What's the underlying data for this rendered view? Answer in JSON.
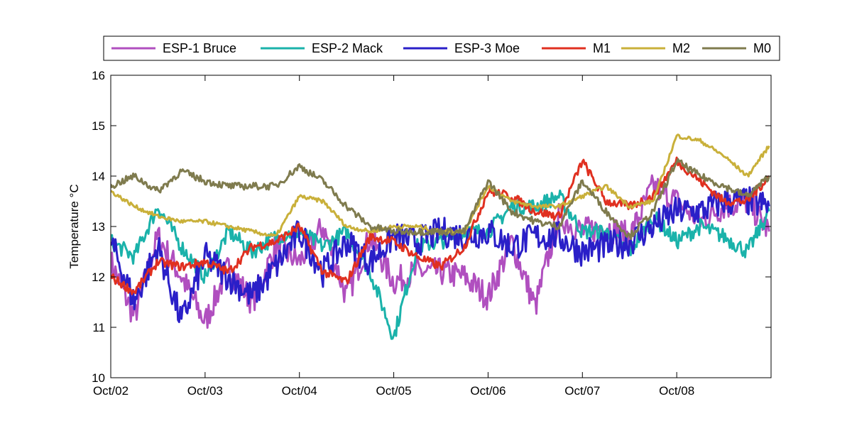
{
  "chart_data": {
    "type": "line",
    "title": "",
    "xlabel": "",
    "ylabel": "Temperature °C",
    "xlim": [
      "Oct/02",
      "Oct/09"
    ],
    "ylim": [
      10,
      16
    ],
    "x_ticks": [
      "Oct/02",
      "Oct/03",
      "Oct/04",
      "Oct/05",
      "Oct/06",
      "Oct/07",
      "Oct/08"
    ],
    "y_ticks": [
      "10",
      "11",
      "12",
      "13",
      "14",
      "15",
      "16"
    ],
    "grid": false,
    "legend_position": "top",
    "x": [
      2.0,
      2.25,
      2.5,
      2.75,
      3.0,
      3.25,
      3.5,
      3.75,
      4.0,
      4.25,
      4.5,
      4.75,
      5.0,
      5.25,
      5.5,
      5.75,
      6.0,
      6.25,
      6.5,
      6.75,
      7.0,
      7.25,
      7.5,
      7.75,
      8.0,
      8.25,
      8.5,
      8.75,
      8.98
    ],
    "series": [
      {
        "name": "ESP-1 Bruce",
        "color": "#b04fbf",
        "values": [
          12.3,
          11.2,
          12.8,
          12.0,
          11.1,
          12.2,
          11.5,
          12.6,
          12.3,
          13.0,
          11.6,
          12.8,
          11.9,
          12.1,
          12.1,
          12.0,
          11.6,
          12.7,
          11.4,
          13.2,
          12.9,
          13.0,
          12.8,
          13.8,
          13.5,
          13.1,
          13.4,
          13.5,
          12.9
        ]
      },
      {
        "name": "ESP-2 Mack",
        "color": "#1ab2aa",
        "values": [
          12.7,
          12.4,
          13.4,
          12.6,
          12.0,
          12.9,
          12.5,
          12.8,
          12.9,
          12.6,
          12.9,
          12.1,
          10.8,
          12.6,
          12.7,
          12.9,
          12.9,
          13.4,
          13.4,
          13.6,
          12.9,
          12.9,
          12.5,
          13.2,
          12.7,
          13.0,
          12.8,
          12.5,
          13.3
        ]
      },
      {
        "name": "ESP-3 Moe",
        "color": "#2a1fc8",
        "values": [
          12.7,
          11.5,
          12.6,
          11.1,
          12.4,
          12.0,
          11.6,
          12.2,
          12.9,
          12.1,
          12.7,
          12.3,
          12.8,
          12.7,
          12.9,
          12.8,
          12.9,
          12.6,
          12.8,
          12.8,
          12.5,
          12.6,
          12.7,
          13.0,
          13.3,
          13.3,
          13.5,
          13.5,
          13.4
        ]
      },
      {
        "name": "M1",
        "color": "#e03020",
        "values": [
          12.0,
          11.7,
          12.3,
          12.2,
          12.3,
          12.1,
          12.6,
          12.7,
          13.0,
          12.1,
          11.9,
          12.8,
          12.7,
          12.4,
          12.2,
          12.6,
          13.7,
          13.6,
          13.3,
          13.2,
          14.3,
          13.5,
          13.4,
          13.6,
          14.3,
          13.9,
          13.5,
          13.5,
          14.0
        ]
      },
      {
        "name": "M2",
        "color": "#c9b03a",
        "values": [
          13.7,
          13.4,
          13.2,
          13.1,
          13.1,
          13.0,
          12.9,
          12.8,
          13.6,
          13.5,
          13.0,
          12.9,
          13.0,
          13.0,
          12.9,
          12.9,
          13.8,
          13.5,
          13.4,
          13.4,
          13.6,
          13.8,
          13.4,
          13.5,
          14.8,
          14.7,
          14.4,
          14.0,
          14.6
        ]
      },
      {
        "name": "M0",
        "color": "#7f7b4e",
        "values": [
          13.8,
          14.0,
          13.7,
          14.1,
          13.9,
          13.8,
          13.8,
          13.8,
          14.2,
          13.9,
          13.4,
          13.0,
          12.9,
          12.9,
          12.9,
          12.9,
          13.9,
          13.3,
          13.1,
          13.0,
          13.9,
          13.3,
          12.8,
          13.3,
          14.3,
          14.0,
          13.8,
          13.6,
          14.0
        ]
      }
    ]
  }
}
